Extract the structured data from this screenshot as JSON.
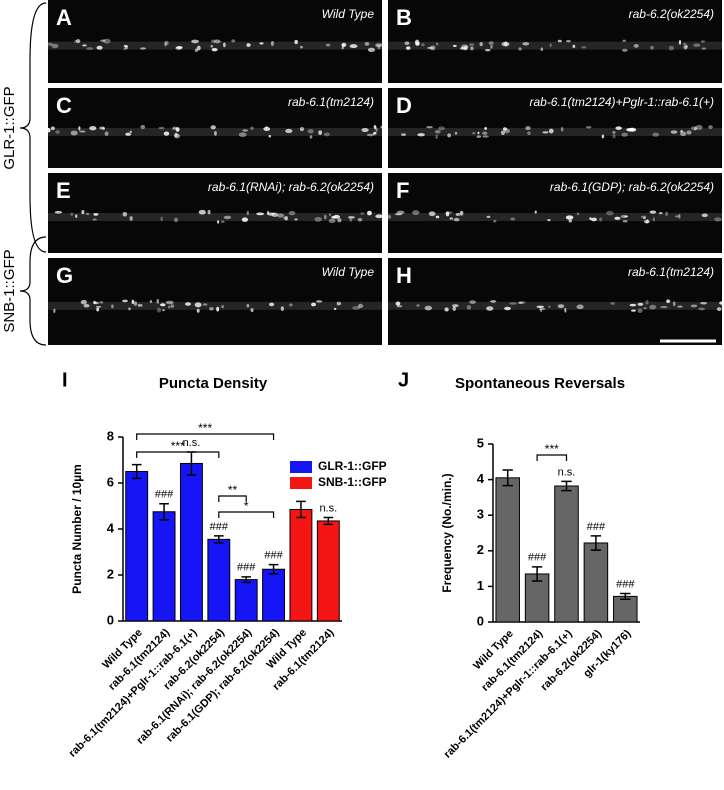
{
  "figure": {
    "brace_labels": [
      "GLR-1::GFP",
      "SNB-1::GFP"
    ],
    "panels": [
      {
        "letter": "A",
        "label": "Wild Type"
      },
      {
        "letter": "B",
        "label": "rab-6.2(ok2254)"
      },
      {
        "letter": "C",
        "label": "rab-6.1(tm2124)"
      },
      {
        "letter": "D",
        "label": "rab-6.1(tm2124)+Pglr-1::rab-6.1(+)"
      },
      {
        "letter": "E",
        "label": "rab-6.1(RNAi); rab-6.2(ok2254)"
      },
      {
        "letter": "F",
        "label": "rab-6.1(GDP); rab-6.2(ok2254)"
      },
      {
        "letter": "G",
        "label": "Wild Type"
      },
      {
        "letter": "H",
        "label": "rab-6.1(tm2124)"
      }
    ]
  },
  "chart_data": [
    {
      "type": "bar",
      "panel": "I",
      "title": "Puncta Density",
      "y_label": "Puncta Number / 10µm",
      "categories": [
        "Wild Type",
        "rab-6.1(tm2124)",
        "rab-6.1(tm2124)+Pglr-1::rab-6.1(+)",
        "rab-6.2(ok2254)",
        "rab-6.1(RNAi); rab-6.2(ok2254)",
        "rab-6.1(GDP); rab-6.2(ok2254)",
        "Wild Type",
        "rab-6.1(tm2124)"
      ],
      "series": [
        {
          "name": "GLR-1::GFP",
          "color": "#1515f5",
          "values": [
            6.5,
            4.75,
            6.85,
            3.55,
            1.8,
            2.25,
            null,
            null
          ],
          "errors": [
            0.3,
            0.35,
            0.5,
            0.15,
            0.12,
            0.2,
            null,
            null
          ]
        },
        {
          "name": "SNB-1::GFP",
          "color": "#f51515",
          "values": [
            null,
            null,
            null,
            null,
            null,
            null,
            4.85,
            4.35
          ],
          "errors": [
            null,
            null,
            null,
            null,
            null,
            null,
            0.35,
            0.15
          ]
        }
      ],
      "significance": [
        null,
        "###",
        "n.s.",
        "###",
        "###",
        "###",
        null,
        "n.s."
      ],
      "comparisons": [
        {
          "from": 0,
          "to": 5,
          "label": "***"
        },
        {
          "from": 0,
          "to": 3,
          "label": "***"
        },
        {
          "from": 3,
          "to": 4,
          "label": "**"
        },
        {
          "from": 3,
          "to": 5,
          "label": "*"
        }
      ],
      "ylim": [
        0,
        8
      ],
      "yticks": [
        0,
        2,
        4,
        6,
        8
      ],
      "legend": "upper right"
    },
    {
      "type": "bar",
      "panel": "J",
      "title": "Spontaneous Reversals",
      "y_label": "Frequency (No./min.)",
      "categories": [
        "Wild Type",
        "rab-6.1(tm2124)",
        "rab-6.1(tm2124)+Pglr-1::rab-6.1(+)",
        "rab-6.2(ok2254)",
        "glr-1(ky176)"
      ],
      "color": "#666666",
      "values": [
        4.05,
        1.35,
        3.82,
        2.22,
        0.72
      ],
      "errors": [
        0.22,
        0.2,
        0.13,
        0.2,
        0.08
      ],
      "significance": [
        null,
        "###",
        "n.s.",
        "###",
        "###"
      ],
      "comparisons": [
        {
          "from": 1,
          "to": 2,
          "label": "***"
        }
      ],
      "ylim": [
        0,
        5
      ],
      "yticks": [
        0,
        1,
        2,
        3,
        4,
        5
      ]
    }
  ]
}
